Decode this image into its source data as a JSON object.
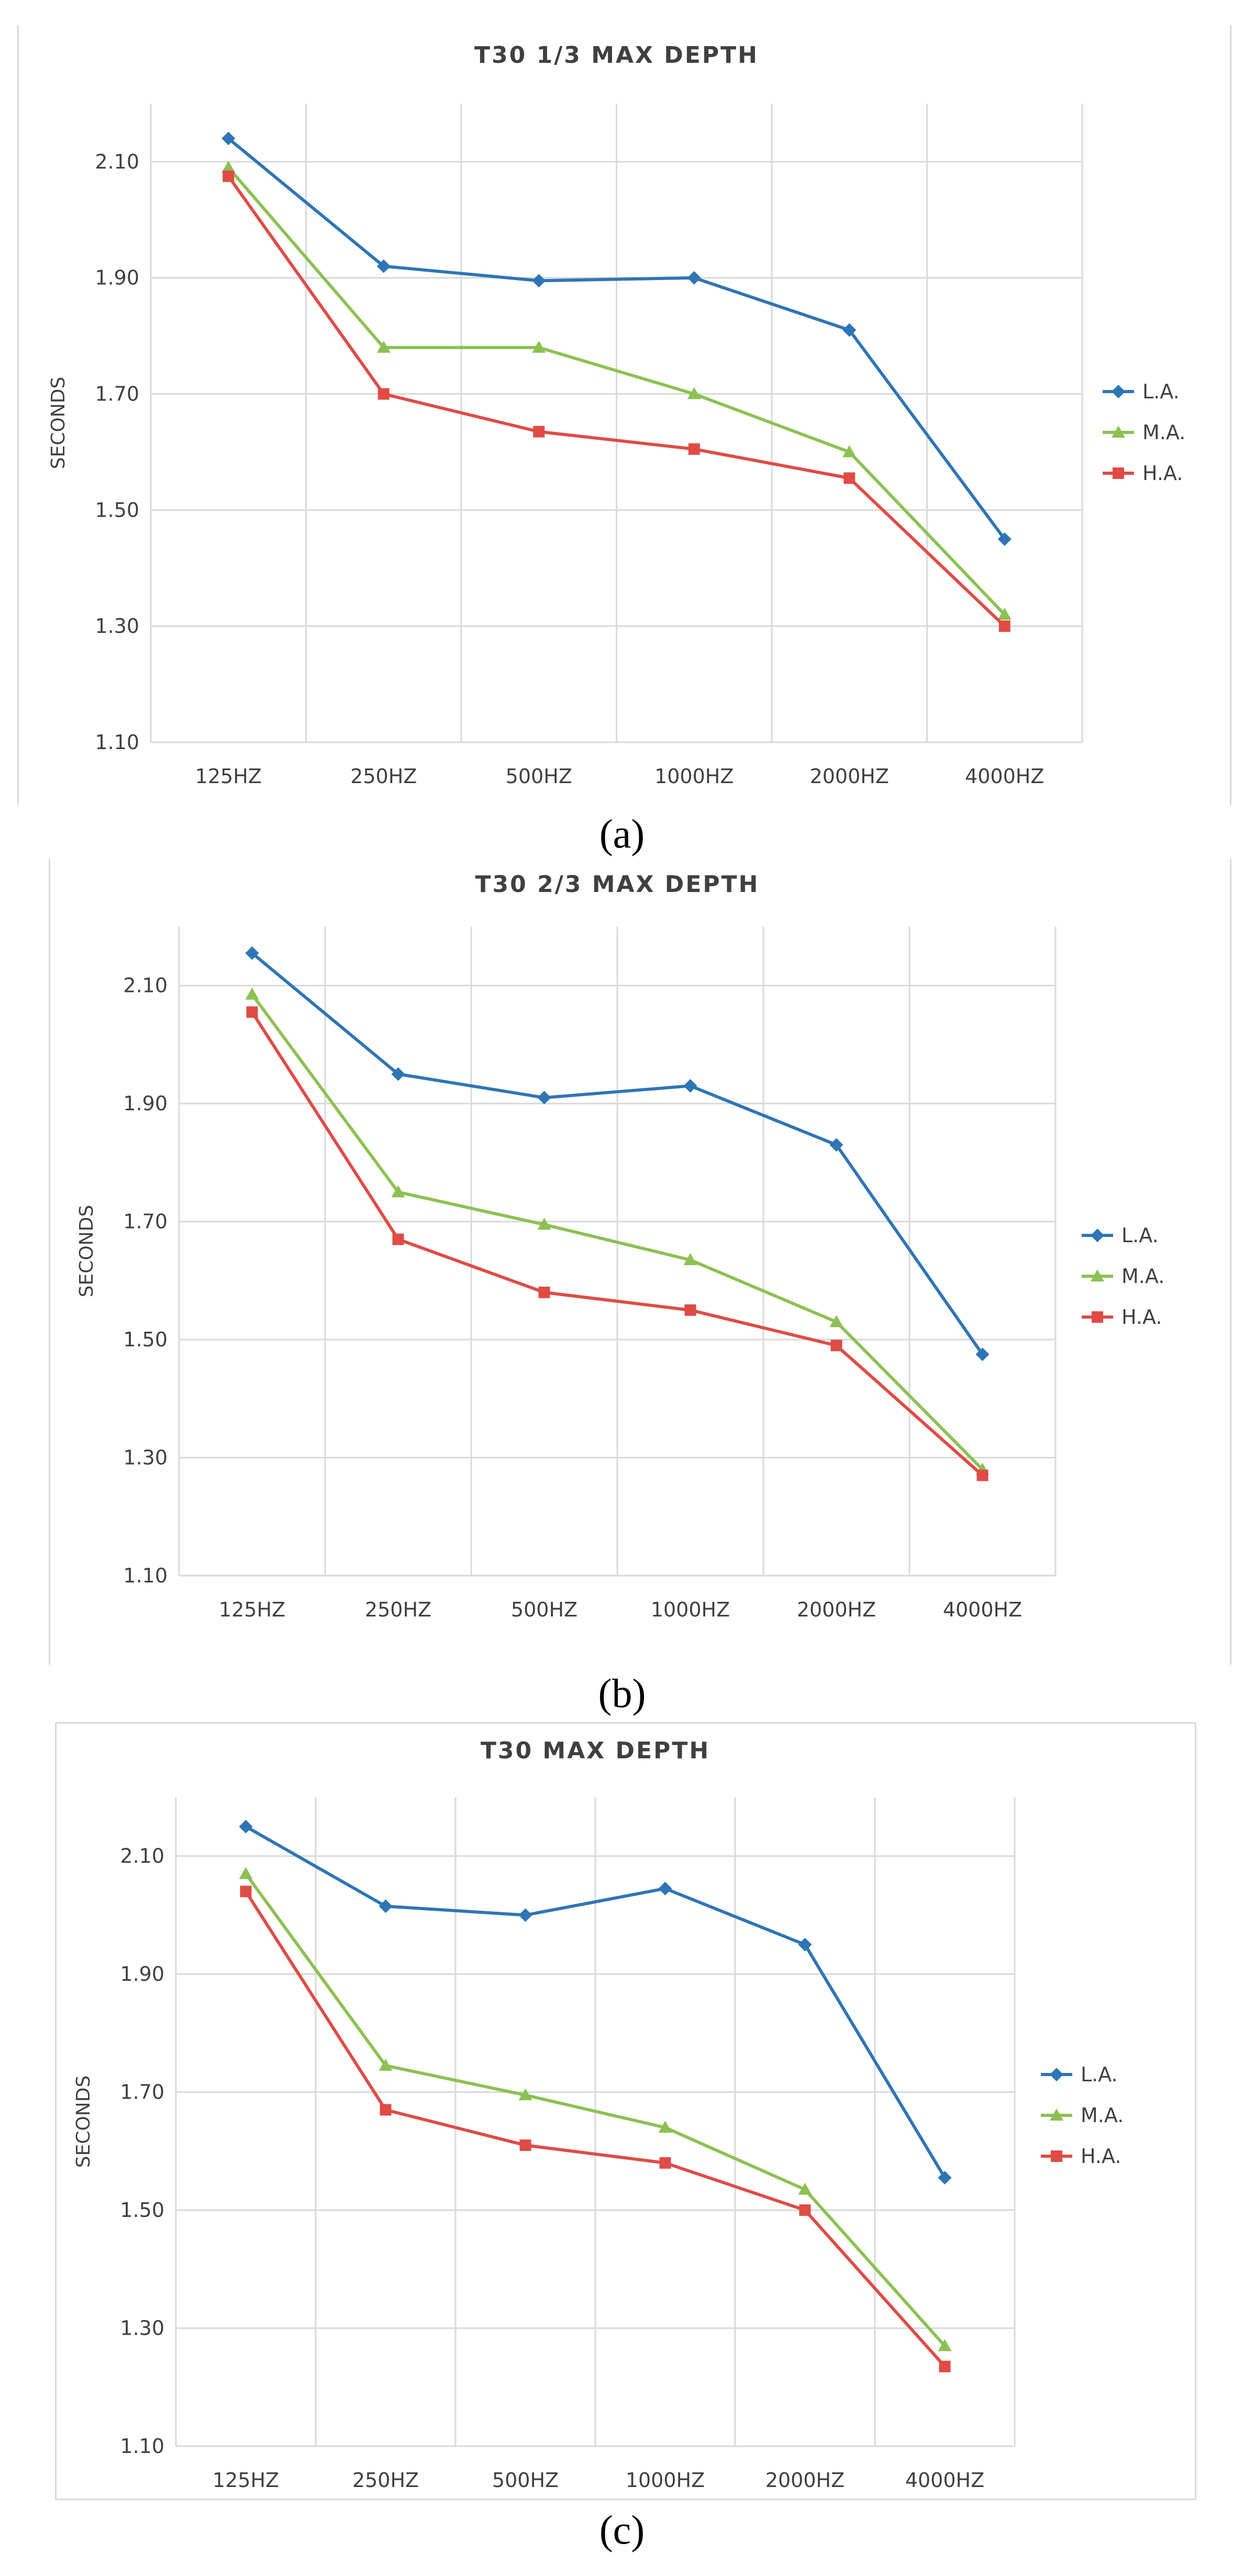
{
  "chart_data": [
    {
      "type": "line",
      "panel_label": "(a)",
      "title": "T30  1/3 MAX DEPTH",
      "xlabel": "",
      "ylabel": "SECONDS",
      "categories": [
        "125HZ",
        "250HZ",
        "500HZ",
        "1000HZ",
        "2000HZ",
        "4000HZ"
      ],
      "ylim": [
        1.1,
        2.2
      ],
      "yticks": [
        "1.10",
        "1.30",
        "1.50",
        "1.70",
        "1.90",
        "2.10"
      ],
      "grid": true,
      "legend_position": "right",
      "series": [
        {
          "name": "L.A.",
          "marker": "diamond",
          "color": "#2e75b6",
          "values": [
            2.14,
            1.92,
            1.895,
            1.9,
            1.81,
            1.45
          ]
        },
        {
          "name": "M.A.",
          "marker": "triangle",
          "color": "#8cc152",
          "values": [
            2.09,
            1.78,
            1.78,
            1.7,
            1.6,
            1.32
          ]
        },
        {
          "name": "H.A.",
          "marker": "square",
          "color": "#e04b45",
          "values": [
            2.075,
            1.7,
            1.635,
            1.605,
            1.555,
            1.3
          ]
        }
      ]
    },
    {
      "type": "line",
      "panel_label": "(b)",
      "title": "T30  2/3 MAX DEPTH",
      "xlabel": "",
      "ylabel": "SECONDS",
      "categories": [
        "125HZ",
        "250HZ",
        "500HZ",
        "1000HZ",
        "2000HZ",
        "4000HZ"
      ],
      "ylim": [
        1.1,
        2.2
      ],
      "yticks": [
        "1.10",
        "1.30",
        "1.50",
        "1.70",
        "1.90",
        "2.10"
      ],
      "grid": true,
      "legend_position": "right",
      "series": [
        {
          "name": "L.A.",
          "marker": "diamond",
          "color": "#2e75b6",
          "values": [
            2.155,
            1.95,
            1.91,
            1.93,
            1.83,
            1.475
          ]
        },
        {
          "name": "M.A.",
          "marker": "triangle",
          "color": "#8cc152",
          "values": [
            2.085,
            1.75,
            1.695,
            1.635,
            1.53,
            1.28
          ]
        },
        {
          "name": "H.A.",
          "marker": "square",
          "color": "#e04b45",
          "values": [
            2.055,
            1.67,
            1.58,
            1.55,
            1.49,
            1.27
          ]
        }
      ]
    },
    {
      "type": "line",
      "panel_label": "(c)",
      "title": "T30 MAX DEPTH",
      "xlabel": "",
      "ylabel": "SECONDS",
      "categories": [
        "125HZ",
        "250HZ",
        "500HZ",
        "1000HZ",
        "2000HZ",
        "4000HZ"
      ],
      "ylim": [
        1.1,
        2.2
      ],
      "yticks": [
        "1.10",
        "1.30",
        "1.50",
        "1.70",
        "1.90",
        "2.10"
      ],
      "grid": true,
      "legend_position": "right",
      "series": [
        {
          "name": "L.A.",
          "marker": "diamond",
          "color": "#2e75b6",
          "values": [
            2.15,
            2.015,
            2.0,
            2.045,
            1.95,
            1.555
          ]
        },
        {
          "name": "M.A.",
          "marker": "triangle",
          "color": "#8cc152",
          "values": [
            2.07,
            1.745,
            1.695,
            1.64,
            1.535,
            1.27
          ]
        },
        {
          "name": "H.A.",
          "marker": "square",
          "color": "#e04b45",
          "values": [
            2.04,
            1.67,
            1.61,
            1.58,
            1.5,
            1.235
          ]
        }
      ]
    }
  ]
}
